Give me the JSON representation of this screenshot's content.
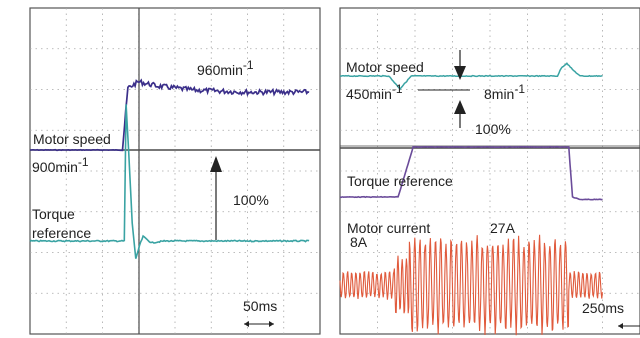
{
  "chart_data": [
    {
      "type": "line",
      "panel": "left",
      "grid": true,
      "grid_divisions": {
        "x": 8,
        "y": 8
      },
      "time_per_division": "50ms",
      "labels": {
        "motor_speed": "Motor speed",
        "speed_base": "900min",
        "speed_peak": "960min",
        "unit_exponent": "-1",
        "torque_line1": "Torque",
        "torque_line2": "reference",
        "torque_value": "100%",
        "time_scale": "50ms"
      },
      "series": [
        {
          "name": "Motor speed",
          "color": "#3b2f8a",
          "x": [
            0,
            2.3,
            2.55,
            2.7,
            3.0,
            3.5,
            4.5,
            6.0,
            7.7
          ],
          "y": [
            900,
            900,
            900,
            960,
            966,
            962,
            958,
            956,
            956
          ]
        },
        {
          "name": "Torque reference",
          "color": "#3aa3a3",
          "x": [
            0,
            2.6,
            2.65,
            2.72,
            2.82,
            2.92,
            3.02,
            3.12,
            3.35,
            3.7,
            7.7
          ],
          "y": [
            0,
            0,
            150,
            100,
            20,
            -20,
            -5,
            5,
            -2,
            0,
            0
          ]
        }
      ]
    },
    {
      "type": "line",
      "panel": "right",
      "grid": true,
      "grid_divisions": {
        "x": 8,
        "y": 8
      },
      "time_per_division": "250ms",
      "labels": {
        "motor_speed": "Motor speed",
        "speed_value": "450min",
        "unit_exponent": "-1",
        "dip_value": "8min",
        "torque_value": "100%",
        "torque_label": "Torque reference",
        "current_label": "Motor current",
        "current_base": "8A",
        "current_peak": "27A",
        "time_scale": "250ms"
      },
      "series": [
        {
          "name": "Motor speed",
          "color": "#3aa3a3",
          "x": [
            0,
            1.3,
            1.45,
            1.6,
            1.75,
            1.9,
            5.8,
            5.9,
            6.05,
            6.2,
            6.4,
            7.0
          ],
          "y": [
            450,
            450,
            446,
            442,
            446,
            450,
            450,
            455,
            458,
            454,
            450,
            450
          ]
        },
        {
          "name": "Torque reference",
          "color": "#6b4c9a",
          "x": [
            0,
            1.55,
            1.75,
            1.95,
            6.1,
            6.2,
            6.4,
            7.0
          ],
          "y": [
            0,
            0,
            50,
            100,
            100,
            0,
            -5,
            -5
          ]
        },
        {
          "name": "Motor current",
          "color": "#e05a3c",
          "phases": [
            {
              "x_start": 0.0,
              "x_end": 1.45,
              "amplitude_A": 8
            },
            {
              "x_start": 1.45,
              "x_end": 1.85,
              "amplitude_A": 18
            },
            {
              "x_start": 1.85,
              "x_end": 6.1,
              "amplitude_A": 27
            },
            {
              "x_start": 6.1,
              "x_end": 7.0,
              "amplitude_A": 8
            }
          ]
        }
      ]
    }
  ],
  "colors": {
    "frame": "#555555",
    "grid": "#a8a8a8",
    "axis": "#4a4a4a",
    "text": "#222222"
  }
}
